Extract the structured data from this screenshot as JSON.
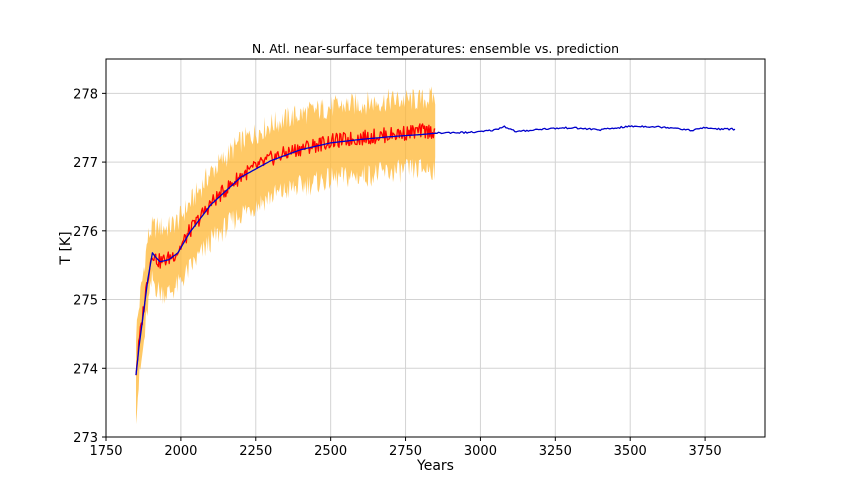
{
  "chart_data": {
    "type": "line",
    "title": "N. Atl. near-surface temperatures: ensemble vs. prediction",
    "xlabel": "Years",
    "ylabel": "T [K]",
    "xlim": [
      1750,
      3950
    ],
    "ylim": [
      273,
      278.5
    ],
    "xticks": [
      1750,
      2000,
      2250,
      2500,
      2750,
      3000,
      3250,
      3500,
      3750
    ],
    "yticks": [
      273,
      274,
      275,
      276,
      277,
      278
    ],
    "grid": true,
    "colors": {
      "band": "#ffb733",
      "ensemble_mean": "#ff0000",
      "prediction": "#0000cc"
    },
    "series": [
      {
        "role": "ensemble-spread-band",
        "x": [
          1850,
          1860,
          1875,
          1890,
          1905,
          1915,
          1930,
          1960,
          1990,
          2030,
          2100,
          2200,
          2300,
          2400,
          2500,
          2600,
          2700,
          2800,
          2850
        ],
        "lower": [
          273.35,
          273.8,
          274.3,
          274.9,
          275.3,
          275.2,
          275.1,
          275.1,
          275.2,
          275.45,
          275.85,
          276.25,
          276.5,
          276.65,
          276.75,
          276.8,
          276.85,
          276.9,
          276.9
        ],
        "upper": [
          274.5,
          274.9,
          275.4,
          275.9,
          276.05,
          276.05,
          276.05,
          276.05,
          276.15,
          276.4,
          276.85,
          277.3,
          277.55,
          277.7,
          277.8,
          277.85,
          277.9,
          277.9,
          277.95
        ]
      },
      {
        "role": "ensemble-mean",
        "x": [
          1850,
          1860,
          1875,
          1890,
          1905,
          1915,
          1930,
          1960,
          1990,
          2030,
          2100,
          2200,
          2300,
          2400,
          2500,
          2600,
          2700,
          2800,
          2850
        ],
        "y": [
          273.95,
          274.35,
          274.85,
          275.35,
          275.7,
          275.6,
          275.55,
          275.6,
          275.7,
          276.0,
          276.4,
          276.8,
          277.05,
          277.2,
          277.3,
          277.35,
          277.4,
          277.45,
          277.45
        ]
      },
      {
        "role": "prediction",
        "x": [
          1850,
          1860,
          1875,
          1890,
          1905,
          1915,
          1930,
          1960,
          1990,
          2030,
          2100,
          2200,
          2300,
          2400,
          2500,
          2600,
          2700,
          2800,
          2850,
          2900,
          2950,
          3000,
          3050,
          3080,
          3120,
          3200,
          3300,
          3400,
          3500,
          3550,
          3650,
          3700,
          3750,
          3800,
          3850
        ],
        "y": [
          273.9,
          274.3,
          274.8,
          275.3,
          275.68,
          275.62,
          275.55,
          275.58,
          275.68,
          275.98,
          276.38,
          276.78,
          277.02,
          277.18,
          277.28,
          277.33,
          277.37,
          277.4,
          277.42,
          277.43,
          277.43,
          277.44,
          277.47,
          277.52,
          277.44,
          277.48,
          277.5,
          277.47,
          277.52,
          277.52,
          277.5,
          277.46,
          277.5,
          277.48,
          277.48
        ]
      }
    ]
  }
}
